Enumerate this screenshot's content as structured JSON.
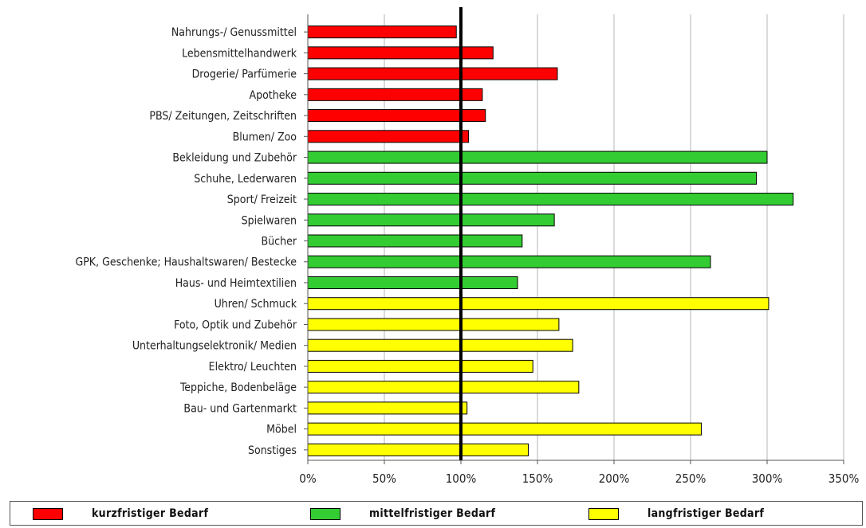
{
  "chart_data": {
    "type": "bar",
    "orientation": "horizontal",
    "categories": [
      "Nahrungs-/ Genussmittel",
      "Lebensmittelhandwerk",
      "Drogerie/ Parfümerie",
      "Apotheke",
      "PBS/ Zeitungen, Zeitschriften",
      "Blumen/ Zoo",
      "Bekleidung und Zubehör",
      "Schuhe, Lederwaren",
      "Sport/ Freizeit",
      "Spielwaren",
      "Bücher",
      "GPK, Geschenke; Haushaltswaren/ Bestecke",
      "Haus- und Heimtextilien",
      "Uhren/ Schmuck",
      "Foto, Optik und Zubehör",
      "Unterhaltungselektronik/ Medien",
      "Elektro/ Leuchten",
      "Teppiche, Bodenbeläge",
      "Bau- und Gartenmarkt",
      "Möbel",
      "Sonstiges"
    ],
    "values": [
      97,
      121,
      163,
      114,
      116,
      105,
      300,
      293,
      317,
      161,
      140,
      263,
      137,
      301,
      164,
      173,
      147,
      177,
      104,
      257,
      144
    ],
    "groups": [
      "kurz",
      "kurz",
      "kurz",
      "kurz",
      "kurz",
      "kurz",
      "mittel",
      "mittel",
      "mittel",
      "mittel",
      "mittel",
      "mittel",
      "mittel",
      "lang",
      "lang",
      "lang",
      "lang",
      "lang",
      "lang",
      "lang",
      "lang"
    ],
    "xlim": [
      0,
      350
    ],
    "xticks": [
      0,
      50,
      100,
      150,
      200,
      250,
      300,
      350
    ],
    "xtick_labels": [
      "0%",
      "50%",
      "100%",
      "150%",
      "200%",
      "250%",
      "300%",
      "350%"
    ],
    "reference_line": 100,
    "grid": "vertical",
    "legend": {
      "placement": "bottom",
      "entries": [
        {
          "key": "kurz",
          "label": "kurzfristiger Bedarf",
          "color": "#ff0000"
        },
        {
          "key": "mittel",
          "label": "mittelfristiger Bedarf",
          "color": "#33cc33"
        },
        {
          "key": "lang",
          "label": "langfristiger Bedarf",
          "color": "#ffff00"
        }
      ]
    },
    "title": "",
    "xlabel": "",
    "ylabel": ""
  }
}
